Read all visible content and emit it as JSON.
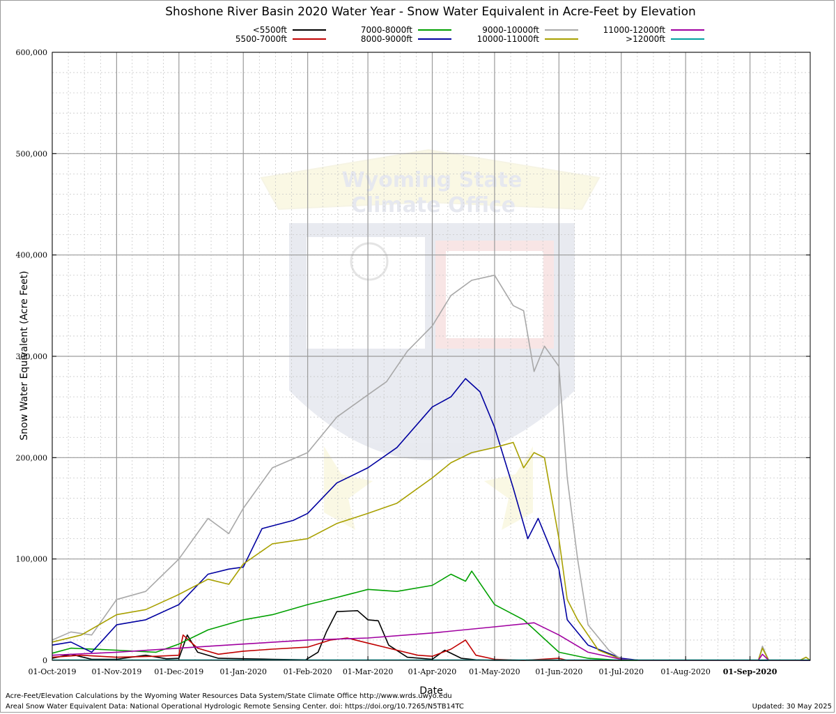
{
  "chart_data": {
    "type": "line",
    "title": "Shoshone River Basin 2020 Water Year - Snow Water Equivalent in Acre-Feet by Elevation",
    "xlabel": "Date",
    "ylabel": "Snow Water Equivalent (Acre Feet)",
    "ylim": [
      0,
      600000
    ],
    "xlim": [
      "2019-10-01",
      "2020-09-30"
    ],
    "x_ticks": [
      "01-Oct-2019",
      "01-Nov-2019",
      "01-Dec-2019",
      "01-Jan-2020",
      "01-Feb-2020",
      "01-Mar-2020",
      "01-Apr-2020",
      "01-May-2020",
      "01-Jun-2020",
      "01-Jul-2020",
      "01-Aug-2020",
      "01-Sep-2020"
    ],
    "y_ticks": [
      "0",
      "100,000",
      "200,000",
      "300,000",
      "400,000",
      "500,000",
      "600,000"
    ],
    "grid": true,
    "legend_position": "top",
    "series": [
      {
        "name": "<5500ft",
        "color": "#000000",
        "points": [
          [
            "2019-10-01",
            2000
          ],
          [
            "2019-10-10",
            6000
          ],
          [
            "2019-10-20",
            1000
          ],
          [
            "2019-11-01",
            1000
          ],
          [
            "2019-11-15",
            5000
          ],
          [
            "2019-11-25",
            1500
          ],
          [
            "2019-12-01",
            2000
          ],
          [
            "2019-12-05",
            25000
          ],
          [
            "2019-12-10",
            8000
          ],
          [
            "2019-12-20",
            2000
          ],
          [
            "2020-01-15",
            1000
          ],
          [
            "2020-01-31",
            500
          ],
          [
            "2020-02-06",
            8000
          ],
          [
            "2020-02-10",
            28000
          ],
          [
            "2020-02-15",
            48000
          ],
          [
            "2020-02-25",
            49000
          ],
          [
            "2020-03-01",
            40000
          ],
          [
            "2020-03-06",
            39000
          ],
          [
            "2020-03-11",
            15000
          ],
          [
            "2020-03-20",
            3000
          ],
          [
            "2020-04-01",
            1000
          ],
          [
            "2020-04-07",
            10000
          ],
          [
            "2020-04-15",
            2000
          ],
          [
            "2020-04-22",
            500
          ],
          [
            "2020-05-01",
            0
          ],
          [
            "2020-09-30",
            0
          ]
        ]
      },
      {
        "name": "5500-7000ft",
        "color": "#c00000",
        "points": [
          [
            "2019-10-01",
            3000
          ],
          [
            "2019-10-15",
            5000
          ],
          [
            "2019-11-01",
            3000
          ],
          [
            "2019-11-20",
            4000
          ],
          [
            "2019-12-01",
            5000
          ],
          [
            "2019-12-03",
            25000
          ],
          [
            "2019-12-10",
            12000
          ],
          [
            "2019-12-20",
            6000
          ],
          [
            "2020-01-01",
            9000
          ],
          [
            "2020-01-15",
            11000
          ],
          [
            "2020-02-01",
            13000
          ],
          [
            "2020-02-12",
            20000
          ],
          [
            "2020-02-20",
            22000
          ],
          [
            "2020-03-01",
            17000
          ],
          [
            "2020-03-15",
            10000
          ],
          [
            "2020-03-25",
            5000
          ],
          [
            "2020-04-01",
            4000
          ],
          [
            "2020-04-10",
            11000
          ],
          [
            "2020-04-17",
            20000
          ],
          [
            "2020-04-22",
            5000
          ],
          [
            "2020-05-01",
            1000
          ],
          [
            "2020-05-15",
            0
          ],
          [
            "2020-06-01",
            2000
          ],
          [
            "2020-06-05",
            0
          ],
          [
            "2020-09-30",
            0
          ]
        ]
      },
      {
        "name": "7000-8000ft",
        "color": "#00a000",
        "points": [
          [
            "2019-10-01",
            7000
          ],
          [
            "2019-10-10",
            12000
          ],
          [
            "2019-11-01",
            10000
          ],
          [
            "2019-11-20",
            8000
          ],
          [
            "2019-12-01",
            16000
          ],
          [
            "2019-12-15",
            30000
          ],
          [
            "2020-01-01",
            40000
          ],
          [
            "2020-01-15",
            45000
          ],
          [
            "2020-02-01",
            55000
          ],
          [
            "2020-02-15",
            62000
          ],
          [
            "2020-03-01",
            70000
          ],
          [
            "2020-03-15",
            68000
          ],
          [
            "2020-04-01",
            74000
          ],
          [
            "2020-04-10",
            85000
          ],
          [
            "2020-04-17",
            78000
          ],
          [
            "2020-04-20",
            88000
          ],
          [
            "2020-05-01",
            55000
          ],
          [
            "2020-05-15",
            40000
          ],
          [
            "2020-06-01",
            8000
          ],
          [
            "2020-06-15",
            2000
          ],
          [
            "2020-07-01",
            0
          ],
          [
            "2020-09-30",
            0
          ]
        ]
      },
      {
        "name": "8000-9000ft",
        "color": "#0000a0",
        "points": [
          [
            "2019-10-01",
            15000
          ],
          [
            "2019-10-10",
            18000
          ],
          [
            "2019-10-20",
            8000
          ],
          [
            "2019-11-01",
            35000
          ],
          [
            "2019-11-15",
            40000
          ],
          [
            "2019-12-01",
            55000
          ],
          [
            "2019-12-15",
            85000
          ],
          [
            "2019-12-25",
            90000
          ],
          [
            "2020-01-01",
            92000
          ],
          [
            "2020-01-10",
            130000
          ],
          [
            "2020-01-25",
            138000
          ],
          [
            "2020-02-01",
            145000
          ],
          [
            "2020-02-15",
            175000
          ],
          [
            "2020-03-01",
            190000
          ],
          [
            "2020-03-15",
            210000
          ],
          [
            "2020-04-01",
            250000
          ],
          [
            "2020-04-10",
            260000
          ],
          [
            "2020-04-17",
            278000
          ],
          [
            "2020-04-24",
            265000
          ],
          [
            "2020-05-01",
            230000
          ],
          [
            "2020-05-10",
            170000
          ],
          [
            "2020-05-17",
            120000
          ],
          [
            "2020-05-22",
            140000
          ],
          [
            "2020-06-01",
            90000
          ],
          [
            "2020-06-05",
            40000
          ],
          [
            "2020-06-15",
            15000
          ],
          [
            "2020-07-01",
            2000
          ],
          [
            "2020-07-10",
            0
          ],
          [
            "2020-09-30",
            0
          ]
        ]
      },
      {
        "name": "9000-10000ft",
        "color": "#a8a8a8",
        "points": [
          [
            "2019-10-01",
            20000
          ],
          [
            "2019-10-10",
            28000
          ],
          [
            "2019-10-20",
            25000
          ],
          [
            "2019-11-01",
            60000
          ],
          [
            "2019-11-15",
            68000
          ],
          [
            "2019-12-01",
            100000
          ],
          [
            "2019-12-15",
            140000
          ],
          [
            "2019-12-25",
            125000
          ],
          [
            "2020-01-01",
            150000
          ],
          [
            "2020-01-15",
            190000
          ],
          [
            "2020-02-01",
            205000
          ],
          [
            "2020-02-15",
            240000
          ],
          [
            "2020-03-01",
            262000
          ],
          [
            "2020-03-10",
            275000
          ],
          [
            "2020-03-20",
            305000
          ],
          [
            "2020-04-01",
            330000
          ],
          [
            "2020-04-10",
            360000
          ],
          [
            "2020-04-20",
            375000
          ],
          [
            "2020-05-01",
            380000
          ],
          [
            "2020-05-10",
            350000
          ],
          [
            "2020-05-15",
            345000
          ],
          [
            "2020-05-20",
            285000
          ],
          [
            "2020-05-25",
            310000
          ],
          [
            "2020-06-01",
            290000
          ],
          [
            "2020-06-05",
            180000
          ],
          [
            "2020-06-10",
            100000
          ],
          [
            "2020-06-15",
            35000
          ],
          [
            "2020-06-25",
            10000
          ],
          [
            "2020-07-01",
            1000
          ],
          [
            "2020-07-10",
            0
          ],
          [
            "2020-09-05",
            0
          ],
          [
            "2020-09-07",
            14000
          ],
          [
            "2020-09-10",
            0
          ],
          [
            "2020-09-25",
            0
          ],
          [
            "2020-09-28",
            3000
          ],
          [
            "2020-09-30",
            0
          ]
        ]
      },
      {
        "name": "10000-11000ft",
        "color": "#a8a000",
        "points": [
          [
            "2019-10-01",
            18000
          ],
          [
            "2019-10-15",
            25000
          ],
          [
            "2019-11-01",
            45000
          ],
          [
            "2019-11-15",
            50000
          ],
          [
            "2019-12-01",
            65000
          ],
          [
            "2019-12-15",
            80000
          ],
          [
            "2019-12-25",
            75000
          ],
          [
            "2020-01-01",
            95000
          ],
          [
            "2020-01-15",
            115000
          ],
          [
            "2020-02-01",
            120000
          ],
          [
            "2020-02-15",
            135000
          ],
          [
            "2020-03-01",
            145000
          ],
          [
            "2020-03-15",
            155000
          ],
          [
            "2020-04-01",
            180000
          ],
          [
            "2020-04-10",
            195000
          ],
          [
            "2020-04-20",
            205000
          ],
          [
            "2020-05-01",
            210000
          ],
          [
            "2020-05-10",
            215000
          ],
          [
            "2020-05-15",
            190000
          ],
          [
            "2020-05-20",
            205000
          ],
          [
            "2020-05-25",
            200000
          ],
          [
            "2020-06-01",
            120000
          ],
          [
            "2020-06-05",
            60000
          ],
          [
            "2020-06-10",
            40000
          ],
          [
            "2020-06-20",
            10000
          ],
          [
            "2020-07-01",
            1000
          ],
          [
            "2020-07-10",
            0
          ],
          [
            "2020-09-05",
            0
          ],
          [
            "2020-09-07",
            12000
          ],
          [
            "2020-09-10",
            0
          ],
          [
            "2020-09-25",
            0
          ],
          [
            "2020-09-28",
            3000
          ],
          [
            "2020-09-30",
            0
          ]
        ]
      },
      {
        "name": "11000-12000ft",
        "color": "#a000a0",
        "points": [
          [
            "2019-10-01",
            5000
          ],
          [
            "2019-11-01",
            8000
          ],
          [
            "2019-12-01",
            12000
          ],
          [
            "2020-01-01",
            16000
          ],
          [
            "2020-02-01",
            20000
          ],
          [
            "2020-03-01",
            22000
          ],
          [
            "2020-04-01",
            27000
          ],
          [
            "2020-05-01",
            33000
          ],
          [
            "2020-05-20",
            37000
          ],
          [
            "2020-06-01",
            25000
          ],
          [
            "2020-06-15",
            8000
          ],
          [
            "2020-07-01",
            1000
          ],
          [
            "2020-07-10",
            0
          ],
          [
            "2020-09-05",
            0
          ],
          [
            "2020-09-07",
            6000
          ],
          [
            "2020-09-10",
            0
          ],
          [
            "2020-09-30",
            0
          ]
        ]
      },
      {
        "name": ">12000ft",
        "color": "#00a0a0",
        "points": [
          [
            "2019-10-01",
            300
          ],
          [
            "2020-09-30",
            300
          ]
        ]
      }
    ],
    "watermark_text": [
      "Wyoming State",
      "Climate Office"
    ]
  },
  "footer": {
    "line1": "Acre-Feet/Elevation Calculations by the Wyoming Water Resources Data System/State Climate Office http://www.wrds.uwyo.edu",
    "line2": "Areal Snow Water Equivalent Data: National Operational Hydrologic Remote Sensing Center. doi: https://doi.org/10.7265/N5TB14TC",
    "updated": "Updated: 30 May 2025"
  }
}
